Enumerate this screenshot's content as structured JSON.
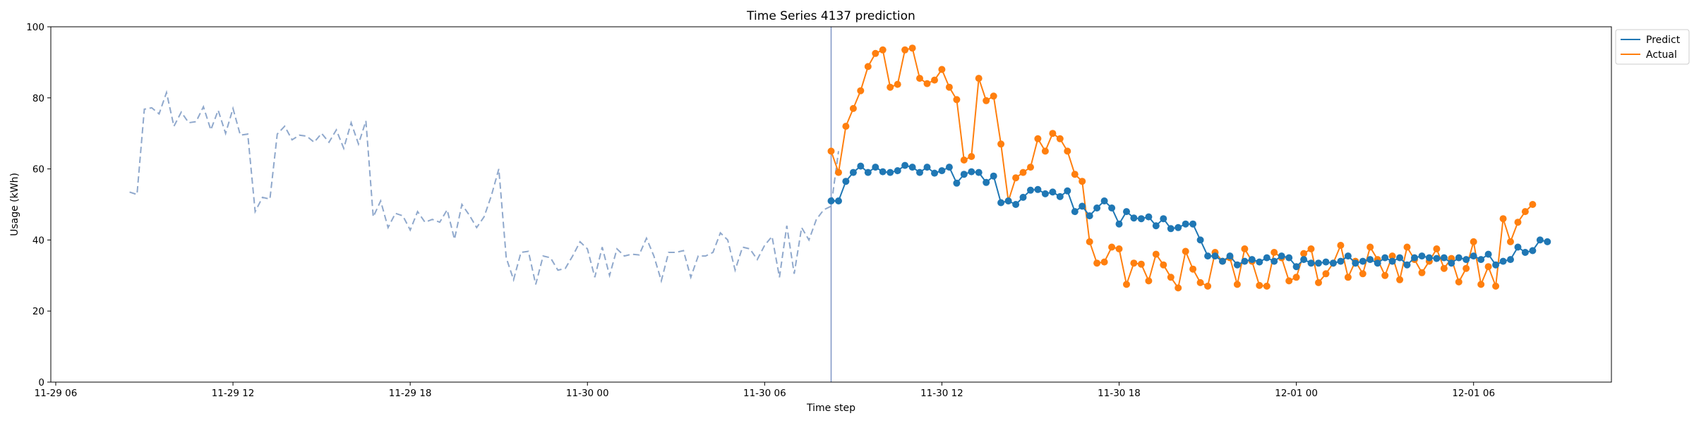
{
  "chart_data": {
    "type": "line",
    "title": "Time Series 4137 prediction",
    "xlabel": "Time step",
    "ylabel": "Usage (kWh)",
    "x_axis_unit": "hours",
    "xlim": [
      "11-29 05:50",
      "12-01 10:40"
    ],
    "ylim": [
      0,
      100
    ],
    "yticks": [
      0,
      20,
      40,
      60,
      80,
      100
    ],
    "xticks": [
      {
        "t": "11-29 06:00",
        "label": "11-29 06"
      },
      {
        "t": "11-29 12:00",
        "label": "11-29 12"
      },
      {
        "t": "11-29 18:00",
        "label": "11-29 18"
      },
      {
        "t": "11-30 00:00",
        "label": "11-30 00"
      },
      {
        "t": "11-30 06:00",
        "label": "11-30 06"
      },
      {
        "t": "11-30 12:00",
        "label": "11-30 12"
      },
      {
        "t": "11-30 18:00",
        "label": "11-30 18"
      },
      {
        "t": "12-01 00:00",
        "label": "12-01 00"
      },
      {
        "t": "12-01 06:00",
        "label": "12-01 06"
      }
    ],
    "forecast_start": "11-30 08:15",
    "legend": {
      "placement": "outside-top-right",
      "entries": [
        "Predict",
        "Actual"
      ]
    },
    "grid": false,
    "colors": {
      "history": "#8fa8cc",
      "predict": "#1f77b4",
      "actual": "#ff7f0e",
      "divider": "#7f95c6"
    },
    "history": {
      "start": "11-29 08:30",
      "step_minutes": 15,
      "values": [
        53.5,
        52.8,
        76.8,
        77.2,
        75.5,
        81.5,
        72.0,
        76.0,
        73.0,
        73.3,
        77.5,
        71.0,
        76.5,
        70.0,
        77.0,
        69.5,
        69.8,
        48.0,
        52.0,
        51.5,
        69.8,
        72.0,
        68.2,
        69.5,
        69.2,
        67.5,
        70.0,
        67.5,
        71.0,
        65.8,
        73.0,
        67.0,
        73.5,
        46.5,
        51.0,
        43.5,
        47.5,
        46.8,
        42.8,
        48.0,
        45.0,
        45.8,
        45.0,
        48.5,
        40.2,
        50.0,
        47.0,
        43.5,
        46.5,
        52.5,
        60.0,
        35.0,
        28.8,
        36.5,
        36.8,
        27.5,
        35.5,
        35.0,
        31.5,
        32.0,
        35.5,
        39.5,
        37.5,
        29.5,
        38.0,
        30.0,
        37.5,
        35.5,
        36.0,
        35.8,
        40.5,
        35.5,
        28.5,
        36.5,
        36.5,
        37.0,
        29.5,
        35.5,
        35.5,
        36.5,
        42.0,
        40.0,
        31.5,
        38.0,
        37.5,
        34.5,
        38.5,
        41.0,
        29.5,
        44.0,
        30.5,
        43.5,
        40.0,
        45.8,
        48.5,
        49.5,
        65.0
      ]
    },
    "series": [
      {
        "name": "Predict",
        "start": "11-30 08:15",
        "step_minutes": 15,
        "values": [
          51.0,
          51.0,
          56.5,
          59.0,
          60.8,
          59.0,
          60.5,
          59.2,
          59.0,
          59.5,
          61.0,
          60.5,
          59.0,
          60.5,
          58.8,
          59.5,
          60.5,
          56.0,
          58.5,
          59.2,
          59.0,
          56.2,
          58.0,
          50.5,
          51.0,
          50.0,
          52.0,
          54.0,
          54.2,
          53.0,
          53.5,
          52.2,
          53.8,
          48.0,
          49.5,
          46.8,
          49.0,
          51.0,
          49.0,
          44.5,
          48.0,
          46.2,
          46.0,
          46.5,
          44.0,
          46.0,
          43.2,
          43.5,
          44.5,
          44.5,
          40.0,
          35.5,
          35.5,
          34.0,
          35.5,
          33.0,
          34.0,
          34.5,
          33.8,
          35.0,
          34.0,
          35.5,
          35.0,
          32.5,
          34.5,
          33.5,
          33.5,
          33.8,
          33.5,
          34.0,
          35.5,
          33.5,
          34.0,
          34.5,
          33.5,
          35.0,
          34.0,
          35.0,
          33.0,
          35.0,
          35.5,
          35.0,
          34.8,
          35.0,
          33.5,
          35.0,
          34.5,
          35.5,
          34.5,
          36.0,
          33.0,
          34.0,
          34.5,
          38.0,
          36.5,
          37.0,
          40.0,
          39.5
        ]
      },
      {
        "name": "Actual",
        "start": "11-30 08:15",
        "step_minutes": 15,
        "values": [
          65.0,
          59.0,
          72.0,
          77.0,
          82.0,
          88.8,
          92.5,
          93.5,
          83.0,
          83.8,
          93.5,
          94.0,
          85.5,
          84.0,
          85.0,
          88.0,
          83.0,
          79.5,
          62.5,
          63.5,
          85.5,
          79.2,
          80.5,
          67.0,
          51.0,
          57.5,
          59.0,
          60.5,
          68.5,
          65.0,
          70.0,
          68.5,
          65.0,
          58.5,
          56.5,
          39.5,
          33.5,
          33.8,
          38.0,
          37.5,
          27.5,
          33.5,
          33.2,
          28.5,
          36.0,
          33.0,
          29.5,
          26.5,
          36.8,
          31.8,
          28.0,
          27.0,
          36.5,
          34.0,
          35.0,
          27.5,
          37.5,
          34.0,
          27.2,
          27.0,
          36.5,
          35.0,
          28.5,
          29.5,
          36.2,
          37.5,
          28.0,
          30.5,
          33.5,
          38.5,
          29.5,
          34.0,
          30.5,
          38.0,
          34.5,
          30.0,
          35.5,
          28.8,
          38.0,
          34.5,
          30.8,
          34.0,
          37.5,
          32.0,
          34.8,
          28.2,
          32.0,
          39.5,
          27.5,
          32.5,
          27.0,
          46.0,
          39.5,
          45.0,
          48.0,
          50.0
        ]
      }
    ]
  }
}
